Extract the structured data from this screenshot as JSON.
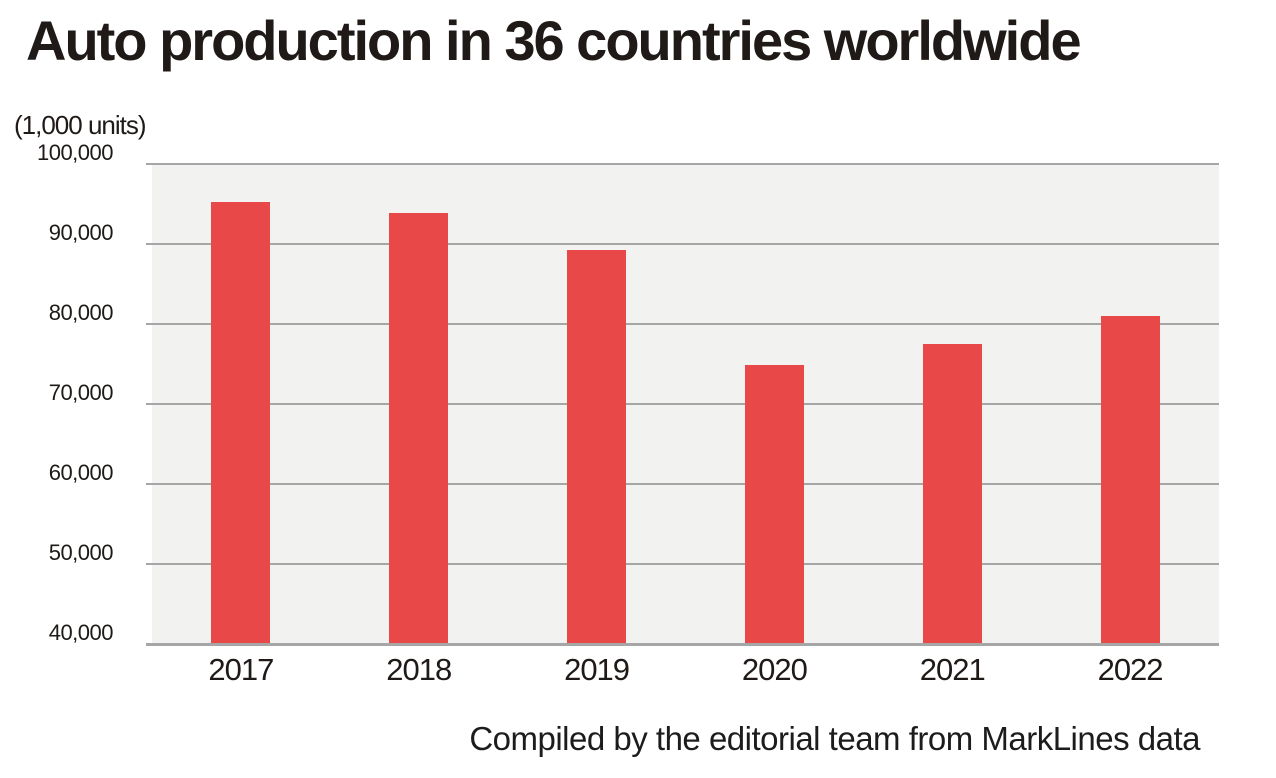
{
  "title": "Auto production in 36 countries worldwide",
  "unit_label": "(1,000 units)",
  "caption": "Compiled by the editorial team from MarkLines data",
  "colors": {
    "bar": "#e84848",
    "plot_background": "#f2f2f0",
    "gridline": "#a6a6a6",
    "text": "#1f1a17"
  },
  "chart_data": {
    "type": "bar",
    "title": "Auto production in 36 countries worldwide",
    "xlabel": "",
    "ylabel": "(1,000 units)",
    "categories": [
      "2017",
      "2018",
      "2019",
      "2020",
      "2021",
      "2022"
    ],
    "values": [
      95200,
      93900,
      89300,
      74900,
      77500,
      81000
    ],
    "ylim": [
      40000,
      100000
    ],
    "yticks": [
      100000,
      90000,
      80000,
      70000,
      60000,
      50000,
      40000
    ],
    "ytick_labels": [
      "100,000",
      "90,000",
      "80,000",
      "70,000",
      "60,000",
      "50,000",
      "40,000"
    ],
    "grid": true,
    "legend": false,
    "bar_color": "#e84848",
    "plot_background": "#f2f2f0",
    "source_note": "Compiled by the editorial team from MarkLines data"
  }
}
